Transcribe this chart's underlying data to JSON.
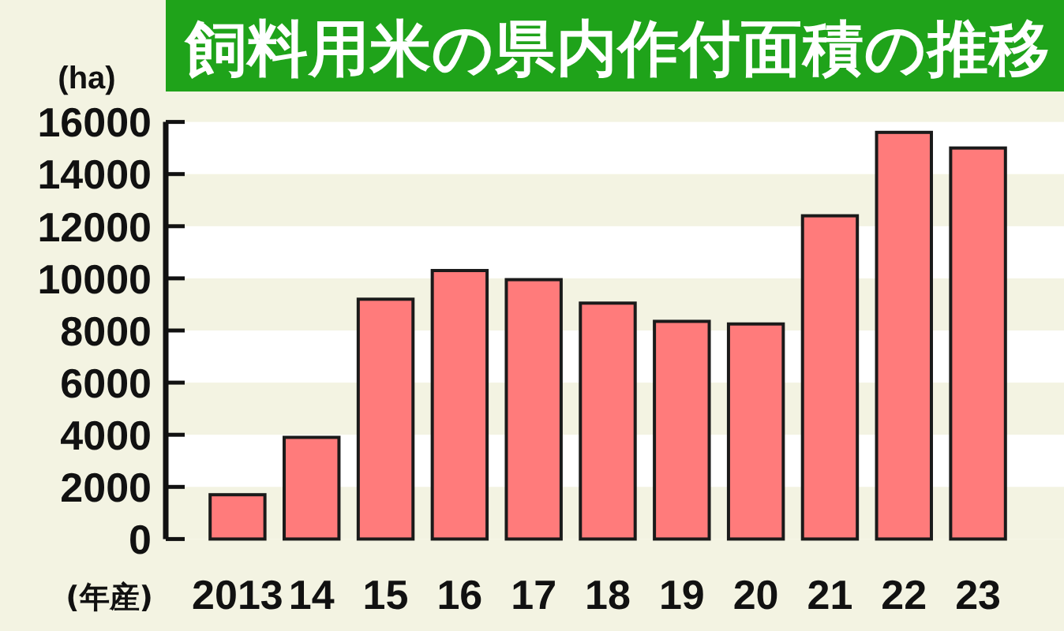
{
  "chart_data": {
    "type": "bar",
    "title": "飼料用米の県内作付面積の推移",
    "ylabel": "(ha)",
    "xlabel": "(年産)",
    "categories": [
      "2013",
      "14",
      "15",
      "16",
      "17",
      "18",
      "19",
      "20",
      "21",
      "22",
      "23"
    ],
    "values": [
      1700,
      3900,
      9200,
      10300,
      9950,
      9050,
      8350,
      8250,
      12400,
      15600,
      15000
    ],
    "color": "#ff7b7b",
    "ylim": [
      0,
      16000
    ],
    "yticks": [
      0,
      2000,
      4000,
      6000,
      8000,
      10000,
      12000,
      14000,
      16000
    ],
    "bands": [
      {
        "axis": "y",
        "from": 0,
        "to": 2000,
        "color": "#f3f3e2"
      },
      {
        "axis": "y",
        "from": 4000,
        "to": 6000,
        "color": "#f3f3e2"
      },
      {
        "axis": "y",
        "from": 8000,
        "to": 10000,
        "color": "#f3f3e2"
      },
      {
        "axis": "y",
        "from": 12000,
        "to": 14000,
        "color": "#f3f3e2"
      }
    ]
  }
}
